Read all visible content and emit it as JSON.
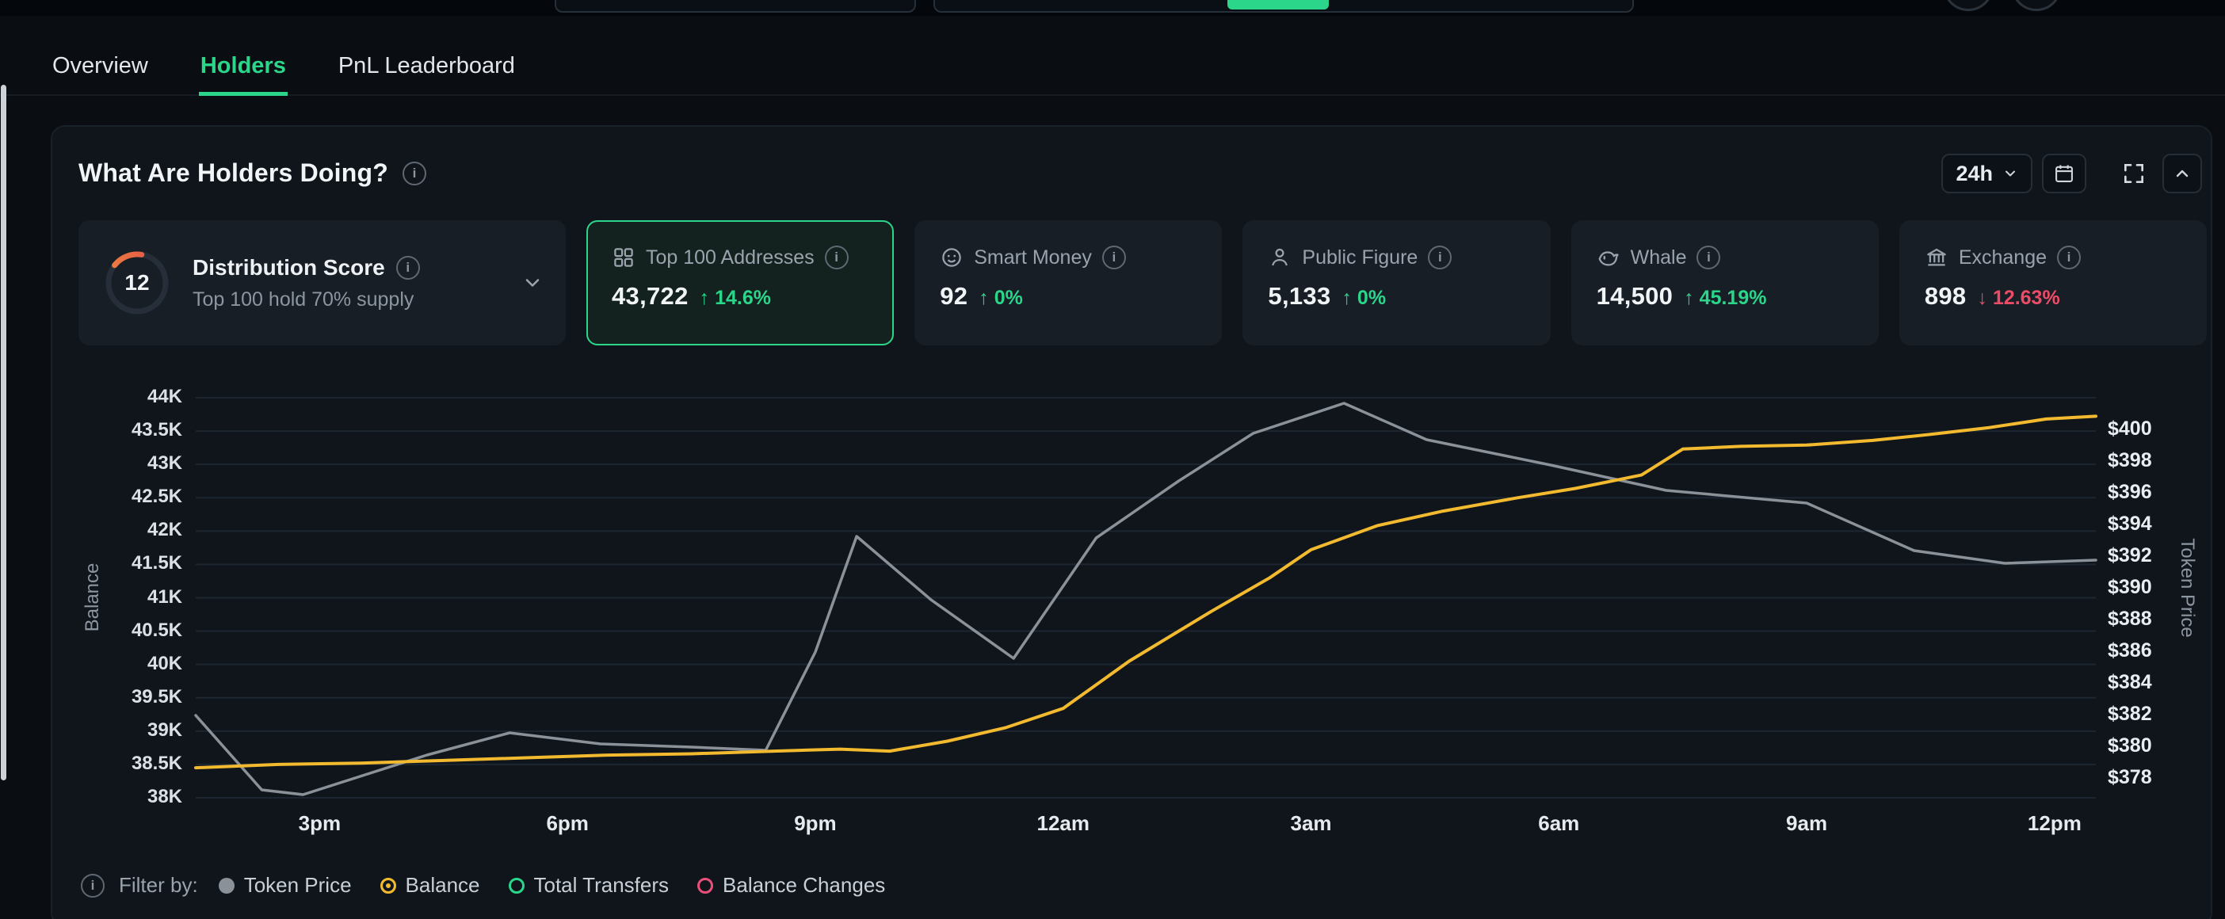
{
  "tabs": [
    {
      "label": "Overview"
    },
    {
      "label": "Holders",
      "active": true
    },
    {
      "label": "PnL Leaderboard"
    }
  ],
  "panel": {
    "title": "What Are Holders Doing?",
    "timeframe": "24h"
  },
  "stats": {
    "distribution": {
      "score": "12",
      "label": "Distribution Score",
      "subtitle": "Top 100 hold 70% supply"
    },
    "cards": [
      {
        "label": "Top 100 Addresses",
        "value": "43,722",
        "change": "14.6%",
        "direction": "up",
        "selected": true,
        "icon": "wallet-grid-icon"
      },
      {
        "label": "Smart Money",
        "value": "92",
        "change": "0%",
        "direction": "up",
        "icon": "coin-face-icon"
      },
      {
        "label": "Public Figure",
        "value": "5,133",
        "change": "0%",
        "direction": "up",
        "icon": "person-icon"
      },
      {
        "label": "Whale",
        "value": "14,500",
        "change": "45.19%",
        "direction": "up",
        "icon": "whale-icon"
      },
      {
        "label": "Exchange",
        "value": "898",
        "change": "12.63%",
        "direction": "down",
        "icon": "bank-icon"
      }
    ]
  },
  "chart_data": {
    "type": "line",
    "x_range": [
      13.5,
      36.5
    ],
    "x_ticks": [
      {
        "label": "3pm",
        "hour": 15
      },
      {
        "label": "6pm",
        "hour": 18
      },
      {
        "label": "9pm",
        "hour": 21
      },
      {
        "label": "12am",
        "hour": 24
      },
      {
        "label": "3am",
        "hour": 27
      },
      {
        "label": "6am",
        "hour": 30
      },
      {
        "label": "9am",
        "hour": 33
      },
      {
        "label": "12pm",
        "hour": 36
      }
    ],
    "left_axis": {
      "label": "Balance",
      "min": 38000,
      "max": 44000,
      "tick_step": 500,
      "tick_labels": [
        "44K",
        "43.5K",
        "43K",
        "42.5K",
        "42K",
        "41.5K",
        "41K",
        "40.5K",
        "40K",
        "39.5K",
        "39K",
        "38.5K",
        "38K"
      ]
    },
    "right_axis": {
      "label": "Token Price",
      "min": 378,
      "max": 400,
      "tick_step": 2,
      "tick_labels": [
        "$400",
        "$398",
        "$396",
        "$394",
        "$392",
        "$390",
        "$388",
        "$386",
        "$384",
        "$382",
        "$380",
        "$378"
      ]
    },
    "grid": true,
    "series": [
      {
        "name": "Token Price",
        "axis": "right",
        "color": "#8a9199",
        "points": [
          [
            13.5,
            382
          ],
          [
            14.3,
            377.3
          ],
          [
            14.8,
            377
          ],
          [
            16.3,
            379.5
          ],
          [
            17.3,
            380.9
          ],
          [
            18.4,
            380.2
          ],
          [
            19.5,
            380
          ],
          [
            20.4,
            379.8
          ],
          [
            21.0,
            386
          ],
          [
            21.5,
            393.3
          ],
          [
            22.4,
            389.3
          ],
          [
            23.4,
            385.6
          ],
          [
            24.4,
            393.2
          ],
          [
            25.4,
            396.8
          ],
          [
            26.3,
            399.8
          ],
          [
            27.4,
            401.7
          ],
          [
            28.4,
            399.4
          ],
          [
            29.9,
            397.8
          ],
          [
            31.3,
            396.2
          ],
          [
            33.0,
            395.4
          ],
          [
            34.3,
            392.4
          ],
          [
            35.4,
            391.6
          ],
          [
            36.5,
            391.8
          ]
        ]
      },
      {
        "name": "Balance",
        "axis": "left",
        "color": "#f3ba2f",
        "points": [
          [
            13.5,
            38450
          ],
          [
            14.5,
            38500
          ],
          [
            15.5,
            38520
          ],
          [
            16.5,
            38560
          ],
          [
            17.5,
            38600
          ],
          [
            18.5,
            38640
          ],
          [
            19.5,
            38660
          ],
          [
            20.5,
            38700
          ],
          [
            21.3,
            38730
          ],
          [
            21.9,
            38700
          ],
          [
            22.6,
            38850
          ],
          [
            23.3,
            39050
          ],
          [
            24.0,
            39340
          ],
          [
            24.8,
            40050
          ],
          [
            25.8,
            40800
          ],
          [
            26.5,
            41300
          ],
          [
            27.0,
            41720
          ],
          [
            27.8,
            42080
          ],
          [
            28.6,
            42300
          ],
          [
            29.5,
            42500
          ],
          [
            30.2,
            42640
          ],
          [
            31.0,
            42840
          ],
          [
            31.5,
            43230
          ],
          [
            32.2,
            43270
          ],
          [
            33.0,
            43290
          ],
          [
            33.8,
            43360
          ],
          [
            34.5,
            43450
          ],
          [
            35.2,
            43550
          ],
          [
            35.9,
            43680
          ],
          [
            36.5,
            43722
          ]
        ]
      }
    ]
  },
  "legend": {
    "filter_label": "Filter by:",
    "items": [
      {
        "label": "Token Price",
        "color": "#8a9199",
        "style": "filled"
      },
      {
        "label": "Balance",
        "color": "#f3ba2f",
        "style": "selected"
      },
      {
        "label": "Total Transfers",
        "color": "#2bd68b",
        "style": "ring"
      },
      {
        "label": "Balance Changes",
        "color": "#e8507a",
        "style": "ring"
      }
    ]
  },
  "colors": {
    "accent_green": "#2bd68b",
    "negative_red": "#ee4b66",
    "balance_line": "#f3ba2f",
    "price_line": "#8a9199",
    "panel_bg": "#0f151b",
    "card_bg": "#171e26"
  }
}
